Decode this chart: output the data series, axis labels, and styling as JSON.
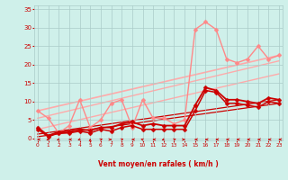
{
  "bg_color": "#cff0ea",
  "grid_color": "#aaccc8",
  "text_color": "#cc0000",
  "xlabel": "Vent moyen/en rafales ( km/h )",
  "x_ticks": [
    0,
    1,
    2,
    3,
    4,
    5,
    6,
    7,
    8,
    9,
    10,
    11,
    12,
    13,
    14,
    15,
    16,
    17,
    18,
    19,
    20,
    21,
    22,
    23
  ],
  "y_ticks": [
    0,
    5,
    10,
    15,
    20,
    25,
    30,
    35
  ],
  "ylim": [
    -0.5,
    36
  ],
  "xlim": [
    -0.3,
    23.3
  ],
  "line_light_x": [
    0,
    1,
    2,
    3,
    4,
    5,
    6,
    7,
    8,
    9,
    10,
    11,
    12,
    13,
    14,
    15,
    16,
    17,
    18,
    19,
    20,
    21,
    22,
    23
  ],
  "line_light_y": [
    7.5,
    5.5,
    1.5,
    3.5,
    10.5,
    3.0,
    5.0,
    9.5,
    10.5,
    3.0,
    10.5,
    5.5,
    5.5,
    4.0,
    5.0,
    29.5,
    31.5,
    29.5,
    21.5,
    20.5,
    21.5,
    25.0,
    21.5,
    22.5
  ],
  "line_light_color": "#ff8888",
  "line_light_lw": 1.0,
  "line_dark1_x": [
    0,
    1,
    2,
    3,
    4,
    5,
    6,
    7,
    8,
    9,
    10,
    11,
    12,
    13,
    14,
    15,
    16,
    17,
    18,
    19,
    20,
    21,
    22,
    23
  ],
  "line_dark1_y": [
    2.5,
    0.5,
    1.5,
    1.5,
    2.0,
    1.5,
    2.5,
    2.0,
    3.0,
    3.5,
    2.5,
    2.5,
    2.5,
    2.5,
    2.5,
    7.5,
    13.0,
    12.5,
    9.5,
    9.5,
    9.0,
    8.5,
    10.0,
    9.5
  ],
  "line_dark1_color": "#cc0000",
  "line_dark1_lw": 1.1,
  "line_dark2_x": [
    0,
    1,
    2,
    3,
    4,
    5,
    6,
    7,
    8,
    9,
    10,
    11,
    12,
    13,
    14,
    15,
    16,
    17,
    18,
    19,
    20,
    21,
    22,
    23
  ],
  "line_dark2_y": [
    3.0,
    0.8,
    1.8,
    2.0,
    2.5,
    2.2,
    3.0,
    3.0,
    4.0,
    4.5,
    3.5,
    4.0,
    3.5,
    3.5,
    3.5,
    9.0,
    13.8,
    13.0,
    10.5,
    10.5,
    10.0,
    9.5,
    11.0,
    10.5
  ],
  "line_dark2_color": "#cc0000",
  "line_dark2_lw": 1.3,
  "trend1_x": [
    0,
    23
  ],
  "trend1_y": [
    7.5,
    22.5
  ],
  "trend1_color": "#ffaaaa",
  "trend1_lw": 1.2,
  "trend2_x": [
    0,
    23
  ],
  "trend2_y": [
    5.5,
    21.0
  ],
  "trend2_color": "#ffaaaa",
  "trend2_lw": 1.0,
  "trend3_x": [
    0,
    23
  ],
  "trend3_y": [
    2.5,
    17.5
  ],
  "trend3_color": "#ffaaaa",
  "trend3_lw": 1.0,
  "trend4_x": [
    0,
    23
  ],
  "trend4_y": [
    1.2,
    10.5
  ],
  "trend4_color": "#cc0000",
  "trend4_lw": 0.9,
  "trend5_x": [
    0,
    23
  ],
  "trend5_y": [
    0.5,
    9.5
  ],
  "trend5_color": "#cc0000",
  "trend5_lw": 0.9,
  "arrow_angles": [
    270,
    225,
    225,
    270,
    225,
    0,
    45,
    90,
    45,
    270,
    315,
    270,
    225,
    45,
    90,
    270,
    270,
    270,
    270,
    270,
    270,
    270,
    270,
    270
  ],
  "marker_size": 2.5
}
